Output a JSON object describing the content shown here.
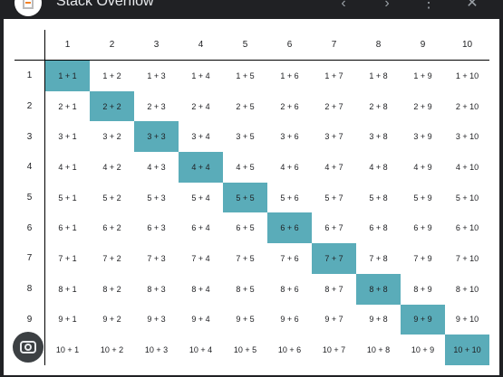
{
  "window": {
    "title": "Stack Overflow",
    "icon": "stackoverflow-logo-icon",
    "controls": [
      "back-icon",
      "forward-icon",
      "more-vert-icon",
      "close-icon"
    ]
  },
  "table": {
    "column_headers": [
      "1",
      "2",
      "3",
      "4",
      "5",
      "6",
      "7",
      "8",
      "9",
      "10"
    ],
    "row_headers": [
      "1",
      "2",
      "3",
      "4",
      "5",
      "6",
      "7",
      "8",
      "9",
      "10"
    ],
    "rows": [
      [
        "1 + 1",
        "1 + 2",
        "1 + 3",
        "1 + 4",
        "1 + 5",
        "1 + 6",
        "1 + 7",
        "1 + 8",
        "1 + 9",
        "1 + 10"
      ],
      [
        "2 + 1",
        "2 + 2",
        "2 + 3",
        "2 + 4",
        "2 + 5",
        "2 + 6",
        "2 + 7",
        "2 + 8",
        "2 + 9",
        "2 + 10"
      ],
      [
        "3 + 1",
        "3 + 2",
        "3 + 3",
        "3 + 4",
        "3 + 5",
        "3 + 6",
        "3 + 7",
        "3 + 8",
        "3 + 9",
        "3 + 10"
      ],
      [
        "4 + 1",
        "4 + 2",
        "4 + 3",
        "4 + 4",
        "4 + 5",
        "4 + 6",
        "4 + 7",
        "4 + 8",
        "4 + 9",
        "4 + 10"
      ],
      [
        "5 + 1",
        "5 + 2",
        "5 + 3",
        "5 + 4",
        "5 + 5",
        "5 + 6",
        "5 + 7",
        "5 + 8",
        "5 + 9",
        "5 + 10"
      ],
      [
        "6 + 1",
        "6 + 2",
        "6 + 3",
        "6 + 4",
        "6 + 5",
        "6 + 6",
        "6 + 7",
        "6 + 8",
        "6 + 9",
        "6 + 10"
      ],
      [
        "7 + 1",
        "7 + 2",
        "7 + 3",
        "7 + 4",
        "7 + 5",
        "7 + 6",
        "7 + 7",
        "7 + 8",
        "7 + 9",
        "7 + 10"
      ],
      [
        "8 + 1",
        "8 + 2",
        "8 + 3",
        "8 + 4",
        "8 + 5",
        "8 + 6",
        "8 + 7",
        "8 + 8",
        "8 + 9",
        "8 + 10"
      ],
      [
        "9 + 1",
        "9 + 2",
        "9 + 3",
        "9 + 4",
        "9 + 5",
        "9 + 6",
        "9 + 7",
        "9 + 8",
        "9 + 9",
        "9 + 10"
      ],
      [
        "10 + 1",
        "10 + 2",
        "10 + 3",
        "10 + 4",
        "10 + 5",
        "10 + 6",
        "10 + 7",
        "10 + 8",
        "10 + 9",
        "10 + 10"
      ]
    ],
    "highlight_color": "#5aacb9"
  },
  "overlay": {
    "icon": "google-lens-icon"
  }
}
